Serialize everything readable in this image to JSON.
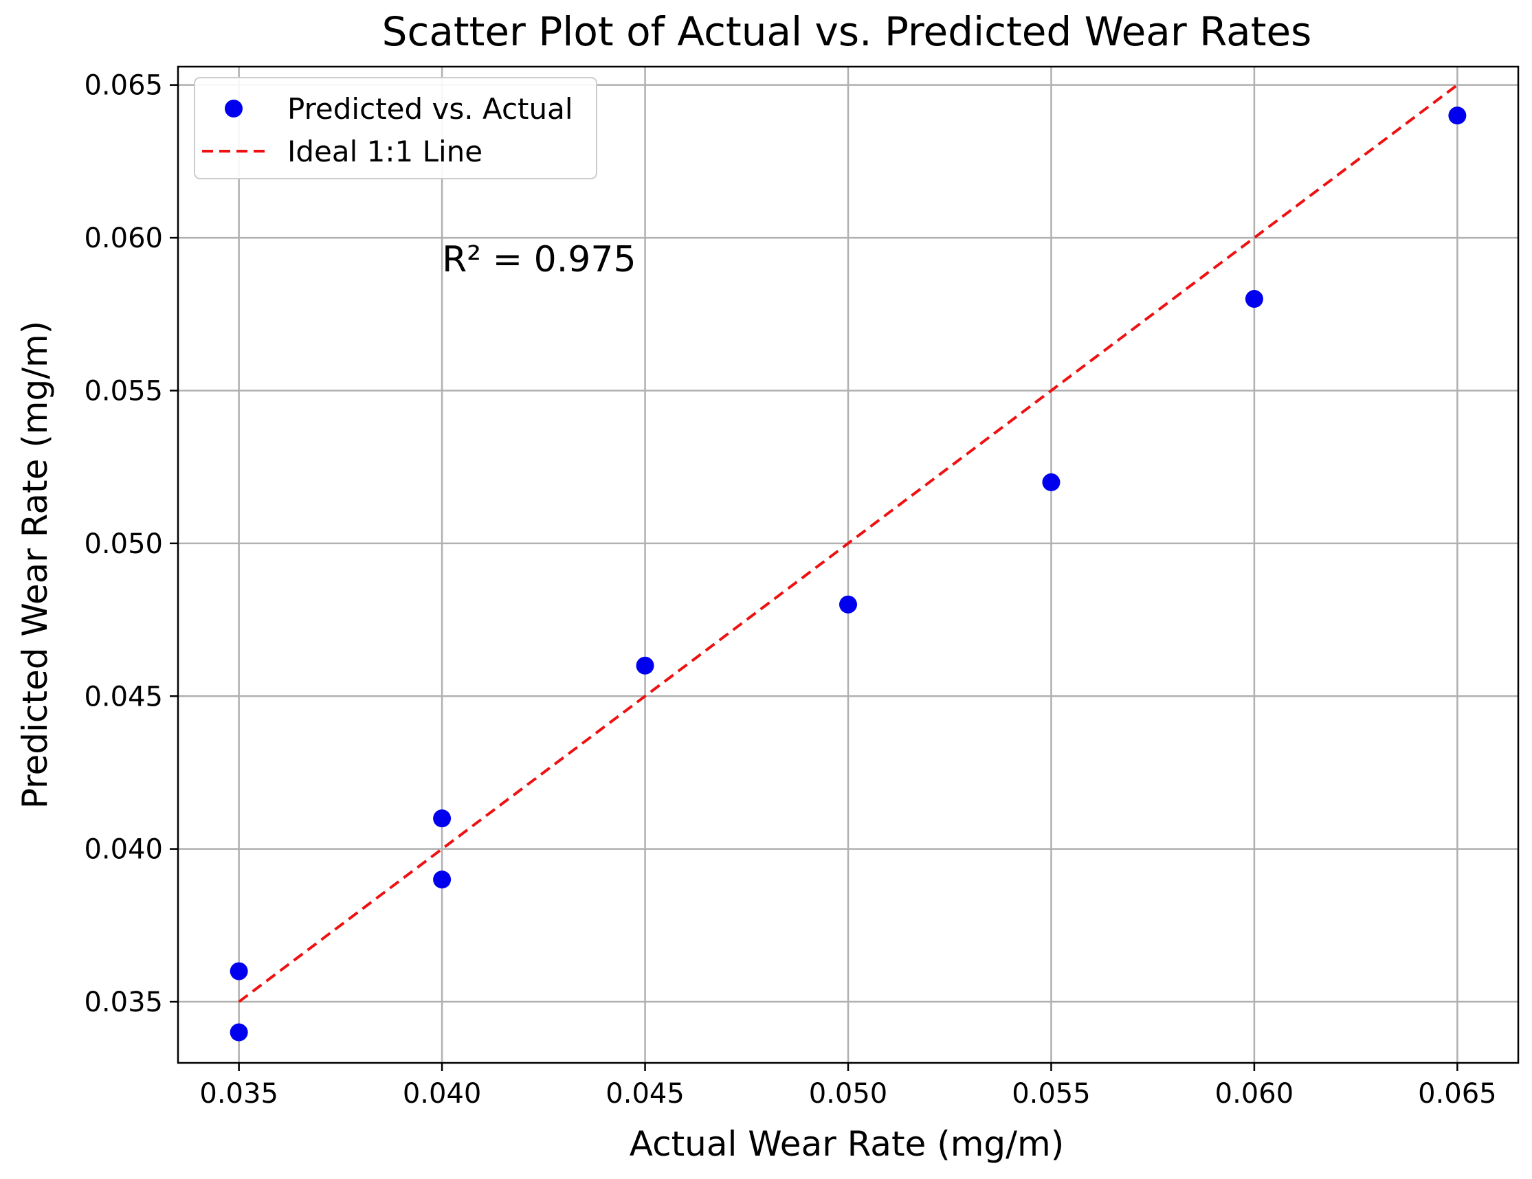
{
  "chart_data": {
    "type": "scatter",
    "title": "Scatter Plot of Actual vs. Predicted Wear Rates",
    "xlabel": "Actual Wear Rate (mg/m)",
    "ylabel": "Predicted Wear Rate (mg/m)",
    "xlim": [
      0.0335,
      0.0665
    ],
    "ylim": [
      0.033,
      0.0656
    ],
    "x_ticks": [
      "0.035",
      "0.040",
      "0.045",
      "0.050",
      "0.055",
      "0.060",
      "0.065"
    ],
    "y_ticks": [
      "0.035",
      "0.040",
      "0.045",
      "0.050",
      "0.055",
      "0.060",
      "0.065"
    ],
    "grid": true,
    "legend_position": "top-left",
    "series": [
      {
        "name": "Predicted vs. Actual",
        "kind": "scatter",
        "color": "#0000ee",
        "x": [
          0.035,
          0.035,
          0.04,
          0.04,
          0.045,
          0.05,
          0.055,
          0.06,
          0.065
        ],
        "y": [
          0.036,
          0.034,
          0.041,
          0.039,
          0.046,
          0.048,
          0.052,
          0.058,
          0.064
        ]
      },
      {
        "name": "Ideal 1:1 Line",
        "kind": "line",
        "style": "dashed",
        "color": "#ee1111",
        "x": [
          0.035,
          0.065
        ],
        "y": [
          0.035,
          0.065
        ]
      }
    ],
    "annotation": "R² = 0.975",
    "annotation_at": [
      0.04,
      0.0593
    ]
  }
}
